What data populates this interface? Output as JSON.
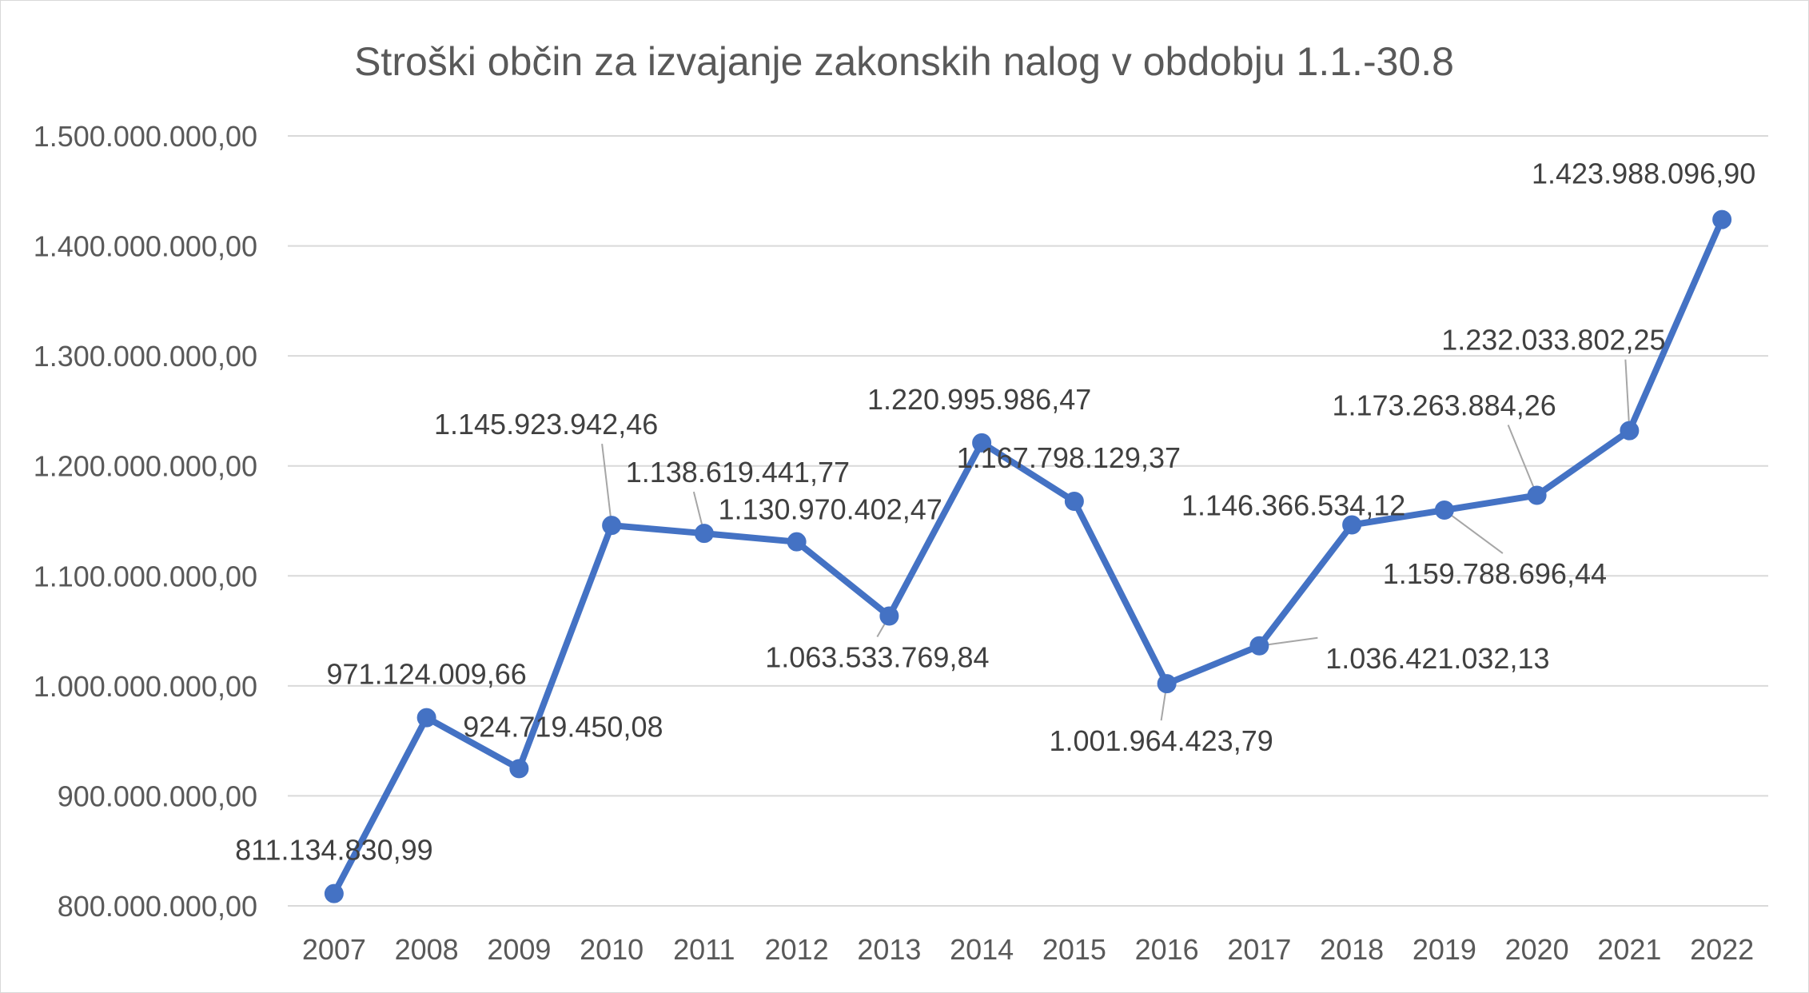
{
  "chart_data": {
    "type": "line",
    "title": "Stroški občin za izvajanje zakonskih nalog v obdobju 1.1.-30.8",
    "xlabel": "",
    "ylabel": "",
    "ylim": [
      800000000,
      1500000000
    ],
    "yticks": [
      {
        "value": 800000000,
        "label": "800.000.000,00"
      },
      {
        "value": 900000000,
        "label": "900.000.000,00"
      },
      {
        "value": 1000000000,
        "label": "1.000.000.000,00"
      },
      {
        "value": 1100000000,
        "label": "1.100.000.000,00"
      },
      {
        "value": 1200000000,
        "label": "1.200.000.000,00"
      },
      {
        "value": 1300000000,
        "label": "1.300.000.000,00"
      },
      {
        "value": 1400000000,
        "label": "1.400.000.000,00"
      },
      {
        "value": 1500000000,
        "label": "1.500.000.000,00"
      }
    ],
    "grid": true,
    "legend": "none",
    "series_color": "#4472c4",
    "categories": [
      "2007",
      "2008",
      "2009",
      "2010",
      "2011",
      "2012",
      "2013",
      "2014",
      "2015",
      "2016",
      "2017",
      "2018",
      "2019",
      "2020",
      "2021",
      "2022"
    ],
    "values": [
      811134830.99,
      971124009.66,
      924719450.08,
      1145923942.46,
      1138619441.77,
      1130970402.47,
      1063533769.84,
      1220995986.47,
      1167798129.37,
      1001964423.79,
      1036421032.13,
      1146366534.12,
      1159788696.44,
      1173263884.26,
      1232033802.25,
      1423988096.9
    ],
    "data_labels": [
      "811.134.830,99",
      "971.124.009,66",
      "924.719.450,08",
      "1.145.923.942,46",
      "1.138.619.441,77",
      "1.130.970.402,47",
      "1.063.533.769,84",
      "1.220.995.986,47",
      "1.167.798.129,37",
      "1.001.964.423,79",
      "1.036.421.032,13",
      "1.146.366.534,12",
      "1.159.788.696,44",
      "1.173.263.884,26",
      "1.232.033.802,25",
      "1.423.988.096,90"
    ]
  }
}
